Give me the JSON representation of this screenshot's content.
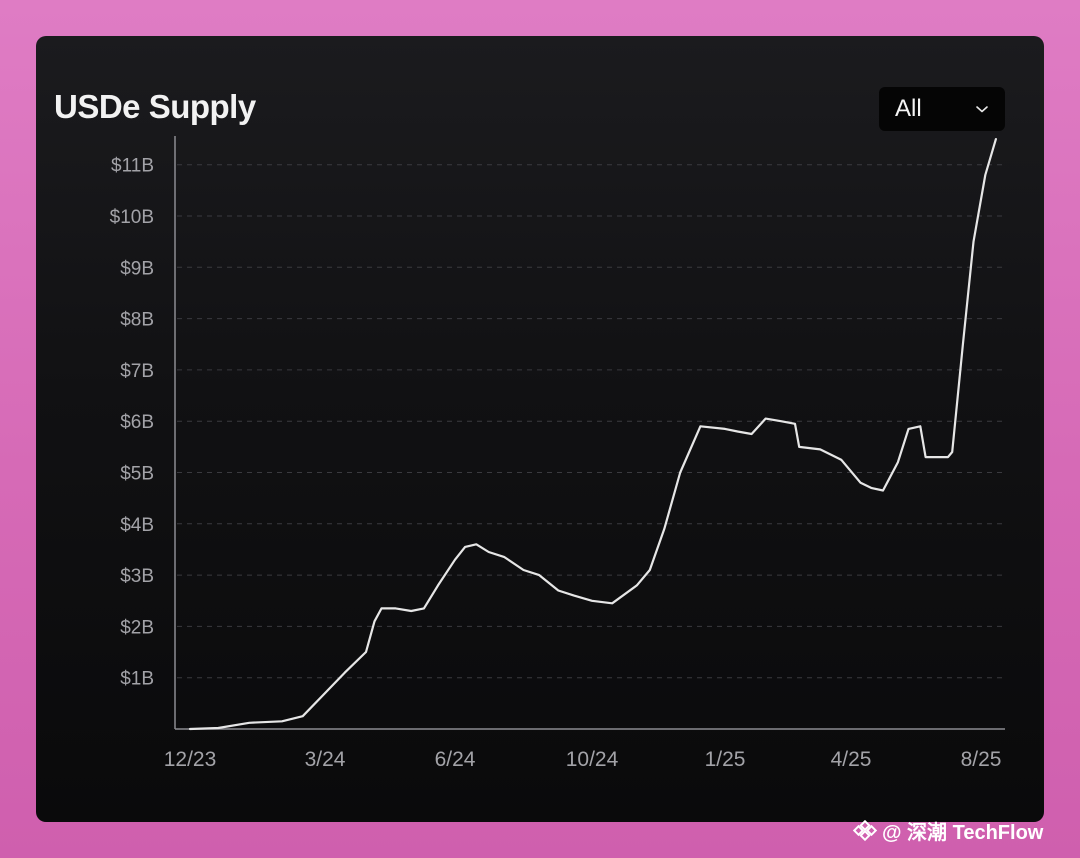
{
  "card": {
    "title": "USDe Supply"
  },
  "filter": {
    "selected": "All"
  },
  "icons": {
    "dropdown": "chevron-down-icon",
    "watermark_logo": "diamond-logo-icon"
  },
  "colors": {
    "line": "#e6e6e6",
    "grid": "#3a3a3f",
    "axis": "#8c8c92",
    "card_bg": "#111113",
    "page_bg": "#d66ab6"
  },
  "watermark": {
    "text": "@ 深潮 TechFlow"
  },
  "chart_data": {
    "type": "line",
    "title": "USDe Supply",
    "xlabel": "",
    "ylabel": "",
    "x_tick_labels": [
      "12/23",
      "3/24",
      "6/24",
      "10/24",
      "1/25",
      "4/25",
      "8/25"
    ],
    "y_tick_labels": [
      "$1B",
      "$2B",
      "$3B",
      "$4B",
      "$5B",
      "$6B",
      "$7B",
      "$8B",
      "$9B",
      "$10B",
      "$11B"
    ],
    "y_unit": "billion USD",
    "ylim": [
      0,
      11.5
    ],
    "grid": true,
    "legend": "none",
    "series": [
      {
        "name": "",
        "points": [
          [
            "2023-12-01",
            0.0
          ],
          [
            "2023-12-20",
            0.02
          ],
          [
            "2024-01-10",
            0.12
          ],
          [
            "2024-02-01",
            0.15
          ],
          [
            "2024-02-15",
            0.25
          ],
          [
            "2024-03-01",
            0.7
          ],
          [
            "2024-03-15",
            1.1
          ],
          [
            "2024-03-30",
            1.5
          ],
          [
            "2024-04-05",
            2.1
          ],
          [
            "2024-04-10",
            2.35
          ],
          [
            "2024-04-20",
            2.35
          ],
          [
            "2024-05-01",
            2.3
          ],
          [
            "2024-05-10",
            2.35
          ],
          [
            "2024-05-20",
            2.8
          ],
          [
            "2024-06-01",
            3.3
          ],
          [
            "2024-06-10",
            3.55
          ],
          [
            "2024-06-20",
            3.6
          ],
          [
            "2024-07-01",
            3.45
          ],
          [
            "2024-07-15",
            3.35
          ],
          [
            "2024-08-01",
            3.1
          ],
          [
            "2024-08-15",
            3.0
          ],
          [
            "2024-09-01",
            2.7
          ],
          [
            "2024-09-15",
            2.6
          ],
          [
            "2024-10-01",
            2.5
          ],
          [
            "2024-10-15",
            2.45
          ],
          [
            "2024-11-01",
            2.8
          ],
          [
            "2024-11-10",
            3.1
          ],
          [
            "2024-11-20",
            3.9
          ],
          [
            "2024-12-01",
            5.0
          ],
          [
            "2024-12-15",
            5.9
          ],
          [
            "2025-01-01",
            5.85
          ],
          [
            "2025-01-10",
            5.8
          ],
          [
            "2025-01-20",
            5.75
          ],
          [
            "2025-01-30",
            6.05
          ],
          [
            "2025-02-10",
            6.0
          ],
          [
            "2025-02-20",
            5.95
          ],
          [
            "2025-02-23",
            5.5
          ],
          [
            "2025-03-10",
            5.45
          ],
          [
            "2025-03-25",
            5.25
          ],
          [
            "2025-04-10",
            4.8
          ],
          [
            "2025-04-20",
            4.7
          ],
          [
            "2025-05-01",
            4.65
          ],
          [
            "2025-05-15",
            5.2
          ],
          [
            "2025-05-25",
            5.85
          ],
          [
            "2025-06-05",
            5.9
          ],
          [
            "2025-06-10",
            5.3
          ],
          [
            "2025-06-20",
            5.3
          ],
          [
            "2025-07-01",
            5.3
          ],
          [
            "2025-07-05",
            5.4
          ],
          [
            "2025-07-15",
            7.5
          ],
          [
            "2025-07-25",
            9.5
          ],
          [
            "2025-08-05",
            10.8
          ],
          [
            "2025-08-15",
            11.5
          ]
        ]
      }
    ]
  }
}
